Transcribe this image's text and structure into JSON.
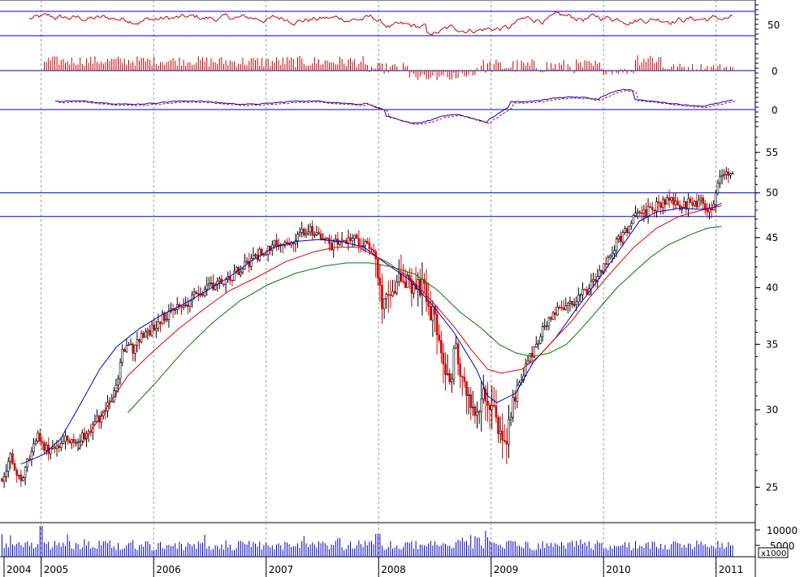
{
  "chart_data": {
    "type": "candlestick",
    "x_axis": {
      "ticks": [
        {
          "label": "2004",
          "t": 2004.0
        },
        {
          "label": "2005",
          "t": 2004.33
        },
        {
          "label": "2006",
          "t": 2005.33
        },
        {
          "label": "2007",
          "t": 2006.33
        },
        {
          "label": "2008",
          "t": 2007.33
        },
        {
          "label": "2009",
          "t": 2008.33
        },
        {
          "label": "2010",
          "t": 2009.33
        },
        {
          "label": "2011",
          "t": 2010.33
        }
      ]
    },
    "price_panel": {
      "scale": "log",
      "ylim": [
        23,
        58
      ],
      "ticks": [
        25,
        30,
        35,
        40,
        45,
        50,
        55
      ],
      "horizontal_lines": [
        50,
        47.3
      ],
      "price_path": [
        [
          2004.0,
          25.5
        ],
        [
          2004.05,
          26.8
        ],
        [
          2004.1,
          26.0
        ],
        [
          2004.15,
          25.2
        ],
        [
          2004.2,
          26.5
        ],
        [
          2004.25,
          27.3
        ],
        [
          2004.3,
          28.5
        ],
        [
          2004.35,
          27.2
        ],
        [
          2004.45,
          27.6
        ],
        [
          2004.55,
          28.0
        ],
        [
          2004.65,
          27.8
        ],
        [
          2004.75,
          28.6
        ],
        [
          2004.85,
          29.5
        ],
        [
          2004.95,
          30.5
        ],
        [
          2005.0,
          32.0
        ],
        [
          2005.05,
          34.5
        ],
        [
          2005.1,
          35.0
        ],
        [
          2005.15,
          34.3
        ],
        [
          2005.2,
          35.6
        ],
        [
          2005.3,
          36.2
        ],
        [
          2005.4,
          37.2
        ],
        [
          2005.5,
          38.0
        ],
        [
          2005.6,
          38.5
        ],
        [
          2005.7,
          39.2
        ],
        [
          2005.8,
          40.1
        ],
        [
          2005.9,
          40.5
        ],
        [
          2006.0,
          41.0
        ],
        [
          2006.1,
          41.8
        ],
        [
          2006.2,
          42.8
        ],
        [
          2006.3,
          43.6
        ],
        [
          2006.4,
          44.2
        ],
        [
          2006.5,
          44.5
        ],
        [
          2006.6,
          45.0
        ],
        [
          2006.7,
          46.0
        ],
        [
          2006.8,
          45.3
        ],
        [
          2006.9,
          44.0
        ],
        [
          2007.0,
          44.8
        ],
        [
          2007.1,
          45.1
        ],
        [
          2007.2,
          44.2
        ],
        [
          2007.3,
          43.5
        ],
        [
          2007.35,
          38.5
        ],
        [
          2007.45,
          40.8
        ],
        [
          2007.55,
          40.0
        ],
        [
          2007.65,
          40.5
        ],
        [
          2007.75,
          39.5
        ],
        [
          2007.85,
          36.0
        ],
        [
          2007.95,
          31.5
        ],
        [
          2008.0,
          34.5
        ],
        [
          2008.05,
          33.0
        ],
        [
          2008.12,
          31.0
        ],
        [
          2008.2,
          29.0
        ],
        [
          2008.27,
          31.5
        ],
        [
          2008.33,
          30.0
        ],
        [
          2008.4,
          28.5
        ],
        [
          2008.45,
          27.5
        ],
        [
          2008.52,
          30.5
        ],
        [
          2008.58,
          32.0
        ],
        [
          2008.65,
          33.5
        ],
        [
          2008.72,
          35.0
        ],
        [
          2008.8,
          36.5
        ],
        [
          2008.88,
          37.8
        ],
        [
          2009.0,
          38.5
        ],
        [
          2009.1,
          39.0
        ],
        [
          2009.2,
          40.0
        ],
        [
          2009.3,
          41.5
        ],
        [
          2009.4,
          43.5
        ],
        [
          2009.5,
          45.5
        ],
        [
          2009.6,
          47.2
        ],
        [
          2009.7,
          47.6
        ],
        [
          2009.8,
          48.6
        ],
        [
          2009.9,
          49.2
        ],
        [
          2010.0,
          48.5
        ],
        [
          2010.1,
          48.9
        ],
        [
          2010.2,
          49.0
        ],
        [
          2010.28,
          48.0
        ],
        [
          2010.33,
          50.5
        ],
        [
          2010.38,
          52.5
        ]
      ],
      "moving_averages": [
        {
          "color": "#0000cc",
          "points": [
            [
              2004.15,
              26.4
            ],
            [
              2004.35,
              27.0
            ],
            [
              2004.5,
              28.0
            ],
            [
              2004.65,
              30.0
            ],
            [
              2004.85,
              33.0
            ],
            [
              2005.0,
              34.8
            ],
            [
              2005.2,
              36.3
            ],
            [
              2005.4,
              37.5
            ],
            [
              2005.6,
              38.5
            ],
            [
              2005.8,
              39.7
            ],
            [
              2006.0,
              41.0
            ],
            [
              2006.2,
              42.6
            ],
            [
              2006.4,
              44.0
            ],
            [
              2006.6,
              44.6
            ],
            [
              2006.8,
              44.8
            ],
            [
              2007.0,
              44.6
            ],
            [
              2007.2,
              44.0
            ],
            [
              2007.4,
              42.3
            ],
            [
              2007.6,
              40.8
            ],
            [
              2007.8,
              38.5
            ],
            [
              2008.0,
              36.0
            ],
            [
              2008.2,
              33.0
            ],
            [
              2008.3,
              31.0
            ],
            [
              2008.38,
              30.5
            ],
            [
              2008.55,
              31.2
            ],
            [
              2008.7,
              33.5
            ],
            [
              2008.9,
              35.5
            ],
            [
              2009.1,
              38.2
            ],
            [
              2009.3,
              41.0
            ],
            [
              2009.5,
              44.2
            ],
            [
              2009.65,
              46.8
            ],
            [
              2009.8,
              47.8
            ],
            [
              2010.0,
              48.2
            ],
            [
              2010.2,
              48.1
            ],
            [
              2010.3,
              48.3
            ],
            [
              2010.38,
              48.8
            ]
          ]
        },
        {
          "color": "#dd0000",
          "points": [
            [
              2004.65,
              27.2
            ],
            [
              2004.9,
              30.0
            ],
            [
              2005.1,
              32.5
            ],
            [
              2005.3,
              34.2
            ],
            [
              2005.55,
              36.3
            ],
            [
              2005.8,
              38.2
            ],
            [
              2006.0,
              39.7
            ],
            [
              2006.25,
              41.0
            ],
            [
              2006.5,
              42.5
            ],
            [
              2006.75,
              43.5
            ],
            [
              2006.95,
              44.0
            ],
            [
              2007.15,
              44.0
            ],
            [
              2007.4,
              42.5
            ],
            [
              2007.6,
              41.0
            ],
            [
              2007.8,
              38.8
            ],
            [
              2008.0,
              36.5
            ],
            [
              2008.15,
              34.6
            ],
            [
              2008.3,
              33.0
            ],
            [
              2008.42,
              32.7
            ],
            [
              2008.6,
              33.0
            ],
            [
              2008.75,
              34.0
            ],
            [
              2008.9,
              35.5
            ],
            [
              2009.05,
              37.0
            ],
            [
              2009.2,
              39.0
            ],
            [
              2009.4,
              41.5
            ],
            [
              2009.6,
              44.0
            ],
            [
              2009.8,
              46.0
            ],
            [
              2010.0,
              47.3
            ],
            [
              2010.2,
              48.0
            ],
            [
              2010.38,
              48.5
            ]
          ]
        },
        {
          "color": "#007700",
          "points": [
            [
              2005.1,
              29.8
            ],
            [
              2005.35,
              32.0
            ],
            [
              2005.6,
              34.5
            ],
            [
              2005.85,
              36.8
            ],
            [
              2006.1,
              38.8
            ],
            [
              2006.35,
              40.3
            ],
            [
              2006.6,
              41.4
            ],
            [
              2006.85,
              42.1
            ],
            [
              2007.05,
              42.4
            ],
            [
              2007.25,
              42.4
            ],
            [
              2007.45,
              42.0
            ],
            [
              2007.65,
              41.3
            ],
            [
              2007.85,
              39.8
            ],
            [
              2008.05,
              37.8
            ],
            [
              2008.25,
              36.3
            ],
            [
              2008.4,
              35.0
            ],
            [
              2008.55,
              34.3
            ],
            [
              2008.7,
              34.0
            ],
            [
              2008.85,
              34.3
            ],
            [
              2009.0,
              35.0
            ],
            [
              2009.15,
              36.5
            ],
            [
              2009.3,
              38.2
            ],
            [
              2009.45,
              40.0
            ],
            [
              2009.6,
              41.5
            ],
            [
              2009.75,
              43.0
            ],
            [
              2009.9,
              44.2
            ],
            [
              2010.1,
              45.3
            ],
            [
              2010.25,
              46.0
            ],
            [
              2010.38,
              46.2
            ]
          ]
        }
      ]
    },
    "rsi_panel": {
      "ticks": [
        50
      ],
      "horizontal_lines": [
        65,
        35
      ],
      "line_color": "#cc0000"
    },
    "histogram_panel": {
      "ticks": [
        0
      ],
      "color": "#cc0000"
    },
    "macd_panel": {
      "ticks": [
        0
      ],
      "line_color": "#0000cc",
      "signal_color": "#cc0000"
    },
    "volume_panel": {
      "ticks": [
        "10000",
        "5000"
      ],
      "unit_label": "x1000",
      "color": "#0000cc"
    }
  }
}
